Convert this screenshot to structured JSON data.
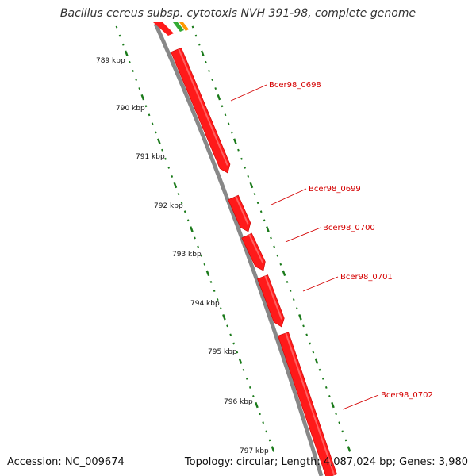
{
  "title": "Bacillus cereus subsp. cytotoxis NVH 391-98, complete genome",
  "footer": {
    "accession": "Accession: NC_009674",
    "topology": "Topology: circular; Length: 4,087,024 bp; Genes: 3,980"
  },
  "scale_labels": [
    "789 kbp",
    "790 kbp",
    "791 kbp",
    "792 kbp",
    "793 kbp",
    "794 kbp",
    "795 kbp",
    "796 kbp",
    "797 kbp"
  ],
  "genes": [
    {
      "label": "Bcer98_0698"
    },
    {
      "label": "Bcer98_0699"
    },
    {
      "label": "Bcer98_0700"
    },
    {
      "label": "Bcer98_0701"
    },
    {
      "label": "Bcer98_0702"
    }
  ],
  "colors": {
    "backbone": "#888888",
    "gene": "#ff1a1a",
    "gene_highlight": "#ff8080",
    "gene_label": "#d40000",
    "tick": "#1a7a1a",
    "top_feature_green": "#33aa33",
    "top_feature_orange": "#ff9900"
  }
}
